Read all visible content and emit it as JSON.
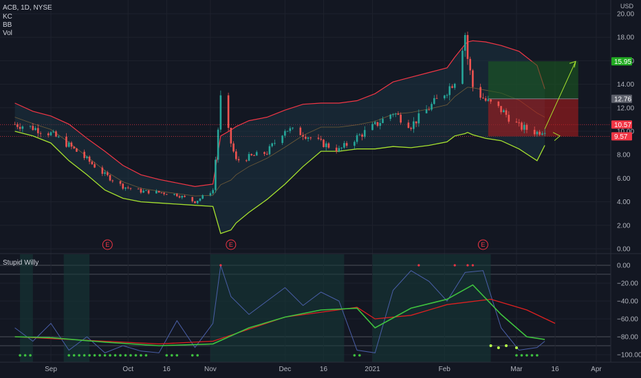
{
  "header": {
    "symbol": "ACB, 1D, NYSE",
    "indicators": [
      "KC",
      "BB",
      "Vol"
    ],
    "currency": "USD"
  },
  "indicator_panel": {
    "title": "Stupid Willy"
  },
  "colors": {
    "background": "#131722",
    "grid": "#1e222d",
    "up": "#26a69a",
    "down": "#ef5350",
    "kc_band": "#f23645",
    "bb_band": "#a7e22e",
    "channel_fill": "#1d3a4a",
    "profit_zone": "#1b5e20",
    "loss_zone": "#b71c1c",
    "arrow": "#a7e22e",
    "willy": "#4a5fa8",
    "willy_ma_green": "#3fc43f",
    "willy_ma_red": "#e02020"
  },
  "chart_data": [
    {
      "type": "candlestick",
      "title": "ACB, 1D, NYSE",
      "ylabel": "USD",
      "ylim": [
        -0.5,
        20.5
      ],
      "yticks": [
        0,
        2,
        4,
        6,
        8,
        10,
        12,
        14,
        16,
        18,
        20
      ],
      "ytick_labels": [
        "0.00",
        "2.00",
        "4.00",
        "6.00",
        "8.00",
        "10.00",
        "12.00",
        "14.00",
        "16.00",
        "18.00",
        "20.00"
      ],
      "xticks": [
        {
          "label": "Sep",
          "date": "2020-09-01"
        },
        {
          "label": "Oct",
          "date": "2020-10-01"
        },
        {
          "label": "16",
          "date": "2020-10-16"
        },
        {
          "label": "Nov",
          "date": "2020-11-02"
        },
        {
          "label": "Dec",
          "date": "2020-12-01"
        },
        {
          "label": "16",
          "date": "2020-12-16"
        },
        {
          "label": "2021",
          "date": "2021-01-04"
        },
        {
          "label": "Feb",
          "date": "2021-02-01"
        },
        {
          "label": "Mar",
          "date": "2021-03-01"
        },
        {
          "label": "16",
          "date": "2021-03-16"
        },
        {
          "label": "Apr",
          "date": "2021-04-01"
        }
      ],
      "price_badges": [
        {
          "label": "15.95",
          "value": 15.95,
          "color": "#22ab22"
        },
        {
          "label": "12.76",
          "value": 12.76,
          "color": "#5d606b"
        },
        {
          "label": "10.57",
          "value": 10.57,
          "color": "#f23645"
        },
        {
          "label": "9.57",
          "value": 9.57,
          "color": "#f23645"
        }
      ],
      "earnings_markers": [
        {
          "label": "E",
          "date": "2020-09-23"
        },
        {
          "label": "E",
          "date": "2020-11-10"
        },
        {
          "label": "E",
          "date": "2021-02-16"
        }
      ],
      "close_series": {
        "dates": [
          "2020-08-18",
          "2020-08-25",
          "2020-09-01",
          "2020-09-08",
          "2020-09-15",
          "2020-09-22",
          "2020-09-29",
          "2020-10-06",
          "2020-10-13",
          "2020-10-20",
          "2020-10-27",
          "2020-11-03",
          "2020-11-06",
          "2020-11-10",
          "2020-11-12",
          "2020-11-17",
          "2020-11-24",
          "2020-12-01",
          "2020-12-08",
          "2020-12-15",
          "2020-12-22",
          "2020-12-29",
          "2021-01-05",
          "2021-01-12",
          "2021-01-19",
          "2021-01-26",
          "2021-02-02",
          "2021-02-05",
          "2021-02-09",
          "2021-02-10",
          "2021-02-12",
          "2021-02-17",
          "2021-02-23",
          "2021-03-02",
          "2021-03-09",
          "2021-03-12"
        ],
        "values": [
          10.6,
          10.3,
          9.8,
          8.8,
          7.6,
          6.3,
          5.3,
          4.9,
          4.8,
          4.6,
          4.0,
          5.0,
          12.8,
          9.0,
          7.5,
          7.8,
          8.2,
          10.2,
          9.8,
          9.0,
          8.4,
          9.5,
          10.5,
          11.6,
          10.5,
          12.0,
          13.5,
          14.4,
          18.3,
          16.2,
          13.8,
          12.6,
          11.8,
          10.4,
          9.9,
          10.2
        ]
      },
      "kc_upper": [
        12.4,
        11.7,
        11.3,
        10.6,
        9.4,
        8.3,
        7.1,
        6.3,
        5.9,
        5.6,
        5.3,
        5.5,
        9.6,
        10.1,
        10.4,
        10.9,
        11.2,
        11.8,
        12.3,
        12.4,
        12.4,
        12.6,
        13.2,
        14.2,
        14.6,
        15.0,
        15.4,
        16.3,
        17.4,
        17.6,
        17.7,
        17.6,
        17.3,
        16.8,
        15.6,
        13.6
      ],
      "bb_lower": [
        10.0,
        9.6,
        9.0,
        7.5,
        6.3,
        5.0,
        4.3,
        4.0,
        3.9,
        3.8,
        3.7,
        3.6,
        1.3,
        1.6,
        2.2,
        3.1,
        4.2,
        5.5,
        7.0,
        8.3,
        8.3,
        8.5,
        8.5,
        8.7,
        8.6,
        8.8,
        9.1,
        9.6,
        9.8,
        9.9,
        9.7,
        9.4,
        9.2,
        8.5,
        7.5,
        8.8
      ],
      "position": {
        "entry": 12.76,
        "target": 15.95,
        "stop": 9.57,
        "start_date": "2021-02-18",
        "end_date": "2021-03-25",
        "projection": {
          "from": 10.2,
          "to": 15.95
        }
      }
    },
    {
      "type": "line",
      "title": "Stupid Willy",
      "ylim": [
        -103,
        3
      ],
      "yticks": [
        0,
        -20,
        -40,
        -60,
        -80,
        -100
      ],
      "ytick_labels": [
        "0.00",
        "−20.00",
        "−40.00",
        "−60.00",
        "−80.00",
        "−100.00"
      ],
      "willy": {
        "dates": [
          "2020-08-18",
          "2020-08-25",
          "2020-09-01",
          "2020-09-08",
          "2020-09-15",
          "2020-09-22",
          "2020-09-29",
          "2020-10-06",
          "2020-10-13",
          "2020-10-20",
          "2020-10-27",
          "2020-11-03",
          "2020-11-06",
          "2020-11-10",
          "2020-11-17",
          "2020-11-24",
          "2020-12-01",
          "2020-12-08",
          "2020-12-15",
          "2020-12-22",
          "2020-12-29",
          "2021-01-05",
          "2021-01-12",
          "2021-01-19",
          "2021-01-26",
          "2021-02-02",
          "2021-02-09",
          "2021-02-16",
          "2021-02-23",
          "2021-03-02",
          "2021-03-09",
          "2021-03-12"
        ],
        "values": [
          -70,
          -85,
          -65,
          -95,
          -80,
          -98,
          -90,
          -96,
          -98,
          -62,
          -92,
          -65,
          0,
          -35,
          -55,
          -40,
          -25,
          -45,
          -30,
          -40,
          -95,
          -98,
          -28,
          -6,
          -18,
          -40,
          -8,
          -6,
          -70,
          -95,
          -92,
          -85
        ]
      },
      "willy_ma": {
        "dates": [
          "2020-08-18",
          "2020-09-01",
          "2020-09-22",
          "2020-10-13",
          "2020-11-03",
          "2020-11-17",
          "2020-12-01",
          "2020-12-15",
          "2020-12-29",
          "2021-01-05",
          "2021-01-19",
          "2021-02-02",
          "2021-02-12",
          "2021-02-23",
          "2021-03-05",
          "2021-03-12"
        ],
        "values": [
          -80,
          -81,
          -86,
          -90,
          -88,
          -70,
          -58,
          -50,
          -48,
          -70,
          -48,
          -38,
          -22,
          -55,
          -80,
          -83
        ]
      },
      "signal_line": {
        "dates": [
          "2020-08-18",
          "2020-10-13",
          "2020-11-03",
          "2020-12-01",
          "2020-12-29",
          "2021-01-05",
          "2021-01-19",
          "2021-02-02",
          "2021-02-19",
          "2021-03-05",
          "2021-03-16"
        ],
        "values": [
          -80,
          -88,
          -85,
          -58,
          -47,
          -60,
          -56,
          -44,
          -38,
          -50,
          -65
        ]
      },
      "threshold_lines": [
        0,
        -10,
        -80,
        -90
      ]
    }
  ]
}
